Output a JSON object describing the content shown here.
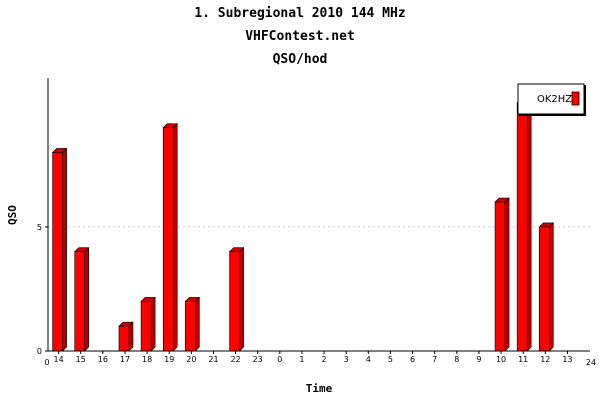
{
  "title": "1. Subregional 2010 144 MHz",
  "subtitle": "VHFContest.net",
  "chart_title": "QSO/hod",
  "chart_data": {
    "type": "bar",
    "xlabel": "Time",
    "ylabel": "QSO",
    "categories": [
      "14",
      "15",
      "16",
      "17",
      "18",
      "19",
      "20",
      "21",
      "22",
      "23",
      "0",
      "1",
      "2",
      "3",
      "4",
      "5",
      "6",
      "7",
      "8",
      "9",
      "10",
      "11",
      "12",
      "13"
    ],
    "series": [
      {
        "name": "OK2HZ",
        "values": [
          8,
          4,
          0,
          1,
          2,
          9,
          2,
          0,
          4,
          0,
          0,
          0,
          0,
          0,
          0,
          0,
          0,
          0,
          0,
          0,
          6,
          10,
          5,
          0
        ]
      }
    ],
    "x_edge_labels": [
      "0",
      "24"
    ],
    "yticks": [
      "0",
      "5"
    ],
    "ylim": [
      0,
      11
    ],
    "grid": "horizontal dashed at 5",
    "legend_position": "top-right",
    "colors": {
      "bar": "#ff0000",
      "bar_side": "#b40000",
      "bar_top": "#cc0000",
      "grid": "#cccccc"
    }
  }
}
